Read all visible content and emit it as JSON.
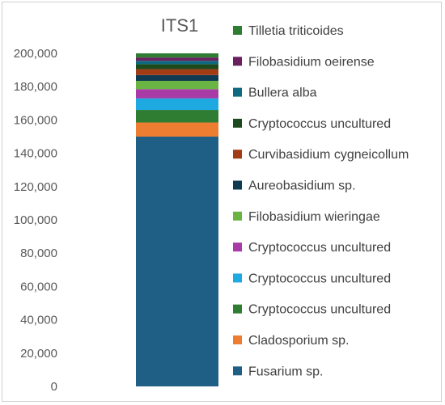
{
  "chart_data": {
    "type": "bar",
    "stacked": true,
    "title": "ITS1",
    "xlabel": "",
    "ylabel": "",
    "ylim": [
      0,
      200000
    ],
    "y_ticks": [
      "0",
      "20,000",
      "40,000",
      "60,000",
      "80,000",
      "100,000",
      "120,000",
      "140,000",
      "160,000",
      "180,000",
      "200,000"
    ],
    "legend_position": "right",
    "series": [
      {
        "name": "Fusarium sp.",
        "value": 150000,
        "color": "#1f5f85"
      },
      {
        "name": "Cladosporium sp.",
        "value": 8500,
        "color": "#ed7d31"
      },
      {
        "name": "Cryptococcus uncultured",
        "value": 7500,
        "color": "#2e7d32"
      },
      {
        "name": "Cryptococcus uncultured",
        "value": 7000,
        "color": "#1fa9e1"
      },
      {
        "name": "Cryptococcus uncultured",
        "value": 5500,
        "color": "#a83ba6"
      },
      {
        "name": "Filobasidium wieringae",
        "value": 5000,
        "color": "#6ab443"
      },
      {
        "name": "Aureobasidium sp.",
        "value": 3500,
        "color": "#0f3a52"
      },
      {
        "name": "Curvibasidium cygneicollum",
        "value": 3500,
        "color": "#a33c14"
      },
      {
        "name": "Cryptococcus uncultured",
        "value": 3000,
        "color": "#1c4a1c"
      },
      {
        "name": "Bullera alba",
        "value": 2000,
        "color": "#0f6a80"
      },
      {
        "name": "Filobasidium oeirense",
        "value": 2000,
        "color": "#6a1f5e"
      },
      {
        "name": "Tilletia triticoides",
        "value": 2500,
        "color": "#2e7d32"
      }
    ]
  }
}
